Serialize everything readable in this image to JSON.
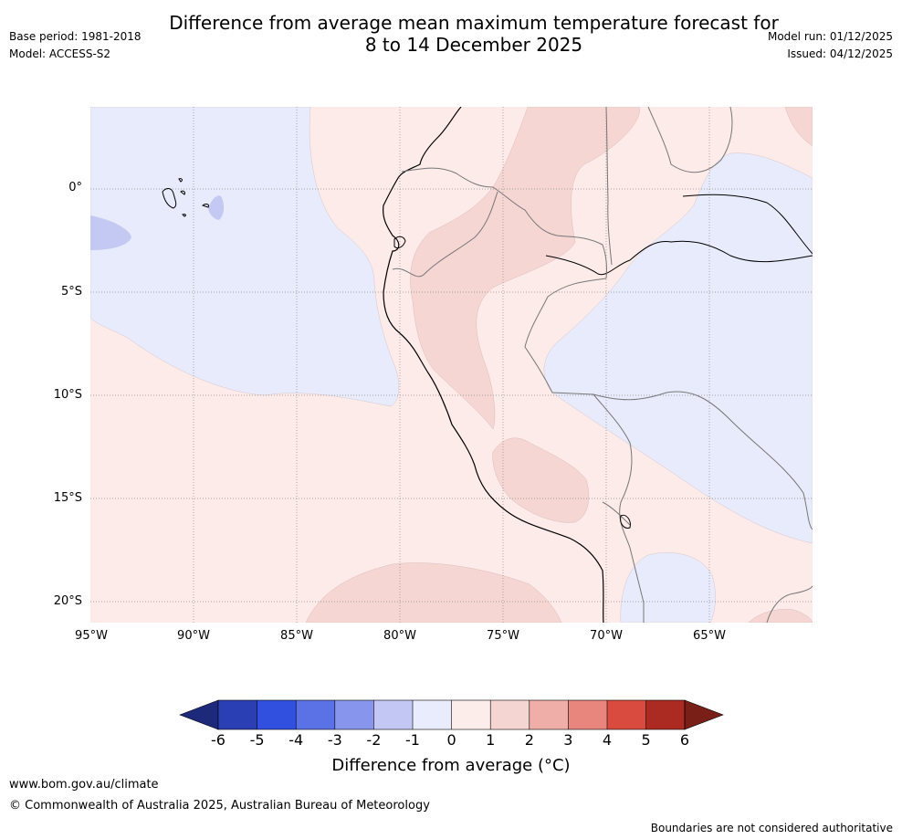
{
  "header": {
    "title_line1": "Difference from average mean maximum temperature forecast for",
    "title_line2": "8 to 14 December 2025",
    "base_period": "Base period: 1981-2018",
    "model": "Model: ACCESS-S2",
    "model_run": "Model run: 01/12/2025",
    "issued": "Issued: 04/12/2025"
  },
  "map": {
    "lat_labels": [
      "0°",
      "5°S",
      "10°S",
      "15°S",
      "20°S"
    ],
    "lon_labels": [
      "95°W",
      "90°W",
      "85°W",
      "80°W",
      "75°W",
      "70°W",
      "65°W"
    ],
    "colors": {
      "ocean_cool": "#e7ebfb",
      "cool_patch": "#c3c9f2",
      "warm_light": "#fcebe9",
      "warm_mid": "#f5d6d3"
    }
  },
  "colorbar": {
    "ticks": [
      "-6",
      "-5",
      "-4",
      "-3",
      "-2",
      "-1",
      "0",
      "1",
      "2",
      "3",
      "4",
      "5",
      "6"
    ],
    "colors": [
      "#1d2a7c",
      "#2a3fb3",
      "#3150e0",
      "#5b72e6",
      "#8796ec",
      "#c2c8f3",
      "#e8ecfc",
      "#fcecea",
      "#f5d5d2",
      "#efaea8",
      "#e8857d",
      "#d94a3f",
      "#ab2a22",
      "#7a1e18"
    ],
    "label": "Difference from average (°C)"
  },
  "footer": {
    "website": "www.bom.gov.au/climate",
    "copyright": "© Commonwealth of Australia 2025, Australian Bureau of Meteorology",
    "disclaimer": "Boundaries are not considered authoritative"
  }
}
